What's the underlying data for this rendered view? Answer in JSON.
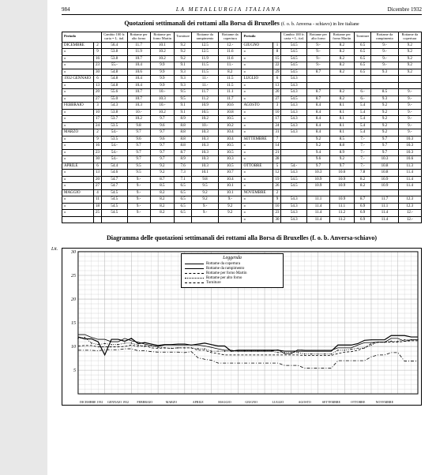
{
  "header": {
    "page_number": "984",
    "journal_title": "LA METALLURGIA ITALIANA",
    "date": "Dicembre 1932"
  },
  "table": {
    "title": "Quotazioni settimanali dei rottami alla Borsa di Bruxelles",
    "subtitle": "(f. o. b. Anversa - schiavo) in lire italiane",
    "columns": [
      "Periodo",
      "Cambio 100 fr. carta = L. ital.",
      "Rottame per alto forno",
      "Rottame per forno Martin",
      "Torniture",
      "Rottame da rampimento",
      "Rottame da copertura"
    ],
    "left_rows": [
      {
        "m": "DICEMBRE",
        "d": "2",
        "v": [
          "56.4",
          "11.7",
          "10.1",
          "9.2",
          "12.5",
          "12.-"
        ]
      },
      {
        "m": "»",
        "d": "9",
        "v": [
          "53.8",
          "11.9",
          "10.2",
          "9.2",
          "12.5",
          "11.6"
        ]
      },
      {
        "m": "»",
        "d": "16",
        "v": [
          "53.8",
          "10.7",
          "10.2",
          "9.2",
          "11.9",
          "11.6"
        ]
      },
      {
        "m": "»",
        "d": "23",
        "v": [
          "55.-",
          "10.4",
          "9.9",
          "9.1",
          "11.5",
          "11.-"
        ]
      },
      {
        "m": "»",
        "d": "30",
        "v": [
          "54.8",
          "10.6",
          "9.9",
          "9.3",
          "11.5",
          "8.2"
        ]
      },
      {
        "m": "1932 GENNAIO",
        "d": "6",
        "v": [
          "54.8",
          "10.4",
          "9.9",
          "9.3",
          "11.-",
          "11.5"
        ]
      },
      {
        "m": "»",
        "d": "13",
        "v": [
          "54.8",
          "10.4",
          "9.9",
          "9.3",
          "11.-",
          "11.5"
        ]
      },
      {
        "m": "»",
        "d": "20",
        "v": [
          "55.6",
          "10.7",
          "10.-",
          "9.5",
          "11.7",
          "11.1"
        ]
      },
      {
        "m": "»",
        "d": "27",
        "v": [
          "55.0",
          "10.7",
          "10.3",
          "9.5",
          "11.2",
          "11.7"
        ]
      },
      {
        "m": "FEBBRAIO",
        "d": "3",
        "v": [
          "54.3",
          "10.3",
          "10.-",
          "9.1",
          "10.9",
          "10.6"
        ]
      },
      {
        "m": "»",
        "d": "10",
        "v": [
          "53.8",
          "10.-",
          "10.2",
          "9.1",
          "10.5",
          "10.8"
        ]
      },
      {
        "m": "»",
        "d": "17",
        "v": [
          "53.7",
          "10.2",
          "9.7",
          "8.9",
          "10.2",
          "10.5"
        ]
      },
      {
        "m": "»",
        "d": "24",
        "v": [
          "53.5",
          "9.8",
          "9.6",
          "8.8",
          "10.-",
          "10.2"
        ]
      },
      {
        "m": "MARZO",
        "d": "2",
        "v": [
          "54.-",
          "9.7",
          "9.7",
          "8.8",
          "10.3",
          "10.4"
        ]
      },
      {
        "m": "»",
        "d": "9",
        "v": [
          "53.5",
          "9.6",
          "9.6",
          "8.8",
          "10.3",
          "10.4"
        ]
      },
      {
        "m": "»",
        "d": "16",
        "v": [
          "54.-",
          "9.7",
          "9.7",
          "8.8",
          "10.3",
          "10.5"
        ]
      },
      {
        "m": "»",
        "d": "23",
        "v": [
          "54.-",
          "9.7",
          "9.7",
          "8.7",
          "10.3",
          "10.5"
        ]
      },
      {
        "m": "»",
        "d": "30",
        "v": [
          "54.-",
          "9.7",
          "9.7",
          "8.9",
          "10.3",
          "10.3"
        ]
      },
      {
        "m": "APRILE",
        "d": "6",
        "v": [
          "54.4",
          "9.5",
          "9.2",
          "7.6",
          "10.3",
          "10.5"
        ]
      },
      {
        "m": "»",
        "d": "13",
        "v": [
          "54.6",
          "9.5",
          "9.2",
          "7.3",
          "10.1",
          "10.7"
        ]
      },
      {
        "m": "»",
        "d": "20",
        "v": [
          "54.7",
          "9.-",
          "8.7",
          "7.1",
          "9.8",
          "10.4"
        ]
      },
      {
        "m": "»",
        "d": "27",
        "v": [
          "54.7",
          "9.-",
          "8.5",
          "6.5",
          "9.5",
          "10.1"
        ]
      },
      {
        "m": "MAGGIO",
        "d": "4",
        "v": [
          "54.5",
          "9.-",
          "8.2",
          "6.5",
          "9.2",
          "10.1"
        ]
      },
      {
        "m": "»",
        "d": "11",
        "v": [
          "54.5",
          "9.-",
          "8.2",
          "6.5",
          "9.2",
          "9.-"
        ]
      },
      {
        "m": "»",
        "d": "18",
        "v": [
          "54.5",
          "9.-",
          "8.2",
          "6.5",
          "9.-",
          "9.2"
        ]
      },
      {
        "m": "»",
        "d": "25",
        "v": [
          "54.5",
          "9.-",
          "8.2",
          "6.5",
          "9.-",
          "9.2"
        ]
      }
    ],
    "right_rows": [
      {
        "m": "GIUGNO",
        "d": "1",
        "v": [
          "54.5",
          "9.-",
          "8.2",
          "6.5",
          "9.-",
          "9.2"
        ]
      },
      {
        "m": "»",
        "d": "8",
        "v": [
          "54.5",
          "9.-",
          "8.2",
          "6.5",
          "9.-",
          "9.2"
        ]
      },
      {
        "m": "»",
        "d": "15",
        "v": [
          "54.5",
          "9.-",
          "8.2",
          "6.5",
          "9.-",
          "9.2"
        ]
      },
      {
        "m": "»",
        "d": "22",
        "v": [
          "54.5",
          "9.-",
          "8.2",
          "6.5",
          "9.-",
          "9.2"
        ]
      },
      {
        "m": "»",
        "d": "29",
        "v": [
          "54.5",
          "8.7",
          "8.2",
          "6.5",
          "9.3",
          "9.2"
        ]
      },
      {
        "m": "LUGLIO",
        "d": "6",
        "v": [
          "54.3",
          "",
          "",
          "",
          "",
          ""
        ]
      },
      {
        "m": "»",
        "d": "13",
        "v": [
          "54.3",
          "",
          "",
          "",
          "",
          ""
        ]
      },
      {
        "m": "»",
        "d": "20",
        "v": [
          "54.3",
          "8.7",
          "8.2",
          "6.-",
          "8.5",
          "9.-"
        ]
      },
      {
        "m": "»",
        "d": "27",
        "v": [
          "54.5",
          "8.7",
          "8.2",
          "6.-",
          "9.3",
          "9.-"
        ]
      },
      {
        "m": "AGOSTO",
        "d": "3",
        "v": [
          "54.3",
          "8.4",
          "8.1",
          "5.4",
          "9.2",
          "9.-"
        ]
      },
      {
        "m": "»",
        "d": "10",
        "v": [
          "54.3",
          "8.4",
          "8.1",
          "5.4",
          "9.2",
          "9.-"
        ]
      },
      {
        "m": "»",
        "d": "17",
        "v": [
          "54.3",
          "8.4",
          "8.1",
          "5.4",
          "9.2",
          "9.-"
        ]
      },
      {
        "m": "»",
        "d": "24",
        "v": [
          "54.3",
          "8.4",
          "8.1",
          "5.4",
          "9.2",
          "9.-"
        ]
      },
      {
        "m": "»",
        "d": "31",
        "v": [
          "54.3",
          "8.4",
          "8.1",
          "5.4",
          "9.2",
          "9.-"
        ]
      },
      {
        "m": "SETTEMBRE",
        "d": "7",
        "v": [
          "",
          "9.2",
          "8.5",
          "7.-",
          "9.7",
          "10.3"
        ]
      },
      {
        "m": "»",
        "d": "14",
        "v": [
          "",
          "9.2",
          "8.8",
          "7.-",
          "9.7",
          "10.3"
        ]
      },
      {
        "m": "»",
        "d": "21",
        "v": [
          "",
          "9.4",
          "8.9",
          "7.-",
          "9.7",
          "10.3"
        ]
      },
      {
        "m": "»",
        "d": "28",
        "v": [
          "",
          "9.6",
          "9.2",
          "7.-",
          "10.3",
          "10.6"
        ]
      },
      {
        "m": "OTTOBRE",
        "d": "5",
        "v": [
          "54.-",
          "9.7",
          "9.7",
          "7.-",
          "10.8",
          "11.3"
        ]
      },
      {
        "m": "»",
        "d": "12",
        "v": [
          "54.3",
          "10.3",
          "10.6",
          "7.8",
          "10.8",
          "11.4"
        ]
      },
      {
        "m": "»",
        "d": "19",
        "v": [
          "54.5",
          "10.9",
          "10.9",
          "8.2",
          "10.9",
          "11.4"
        ]
      },
      {
        "m": "»",
        "d": "26",
        "v": [
          "54.5",
          "10.9",
          "10.9",
          "8.2",
          "10.9",
          "11.4"
        ]
      },
      {
        "m": "NOVEMBRE",
        "d": "2",
        "v": [
          "",
          "",
          "",
          "",
          "",
          ""
        ]
      },
      {
        "m": "»",
        "d": "9",
        "v": [
          "54.3",
          "11.1",
          "10.9",
          "8.7",
          "11.7",
          "12.3"
        ]
      },
      {
        "m": "»",
        "d": "16",
        "v": [
          "54.3",
          "11.4",
          "11.1",
          "6.9",
          "11.1",
          "12.3"
        ]
      },
      {
        "m": "»",
        "d": "23",
        "v": [
          "54.3",
          "11.4",
          "11.2",
          "6.9",
          "11.4",
          "12.-"
        ]
      },
      {
        "m": "»",
        "d": "30",
        "v": [
          "54.3",
          "11.4",
          "11.2",
          "6.9",
          "11.4",
          "12.-"
        ]
      }
    ]
  },
  "chart": {
    "title": "Diagramma delle quotazioni settimanali dei rottami alla Borsa di Bruxelles",
    "subtitle": "(f. o. b. Anversa-schiavo)",
    "y_label": "Lit.",
    "y_max": 30,
    "y_min": 0,
    "y_tick_step": 5,
    "y_ticks": [
      30,
      25,
      20,
      15,
      10,
      5
    ],
    "x_months": [
      "DICEMBRE 1931",
      "GENNAIO 1932",
      "FEBBRAIO",
      "MARZO",
      "APRILE",
      "MAGGIO",
      "GIUGNO",
      "LUGLIO",
      "AGOSTO",
      "SETTEMBRE",
      "OTTOBRE",
      "NOVEMBRE"
    ],
    "grid_color": "#b0b0b0",
    "background_color": "#ffffff",
    "legend": {
      "title": "Leggenda",
      "items": [
        {
          "label": "Rottame da copertura",
          "style": "solid",
          "width": 1.2
        },
        {
          "label": "Rottame da rampimento",
          "style": "solid",
          "width": 0.8
        },
        {
          "label": "Rottame per forno Martin",
          "style": "dashed",
          "width": 0.8
        },
        {
          "label": "Rottame per alto forno",
          "style": "dotted",
          "width": 0.8
        },
        {
          "label": "Torniture",
          "style": "dash-dot",
          "width": 0.8
        }
      ]
    },
    "series": [
      {
        "name": "copertura",
        "style": "solid",
        "width": 1.2,
        "points": [
          12.0,
          11.6,
          11.6,
          11.0,
          8.2,
          11.5,
          11.5,
          11.1,
          11.7,
          10.6,
          10.8,
          10.5,
          10.2,
          10.4,
          10.4,
          10.5,
          10.5,
          10.3,
          10.5,
          10.7,
          10.4,
          10.1,
          10.1,
          9.0,
          9.2,
          9.2,
          9.2,
          9.2,
          9.2,
          9.2,
          9.2,
          9.0,
          9.0,
          9.0,
          9.0,
          9.0,
          9.0,
          9.0,
          9.0,
          10.3,
          10.3,
          10.3,
          10.6,
          11.3,
          11.4,
          11.4,
          11.4,
          12.3,
          12.3,
          12.3,
          12.0,
          12.0
        ]
      },
      {
        "name": "rampimento",
        "style": "solid",
        "width": 0.8,
        "points": [
          12.5,
          12.5,
          11.9,
          11.5,
          11.5,
          11.0,
          11.0,
          11.7,
          11.2,
          10.9,
          10.5,
          10.2,
          10.0,
          10.3,
          10.3,
          10.3,
          10.3,
          10.3,
          10.3,
          10.1,
          9.8,
          9.5,
          9.2,
          9.2,
          9.0,
          9.0,
          9.0,
          9.0,
          9.0,
          9.0,
          9.3,
          8.5,
          8.5,
          9.3,
          9.2,
          9.2,
          9.2,
          9.2,
          9.2,
          9.7,
          9.7,
          9.7,
          10.3,
          10.8,
          10.8,
          10.9,
          10.9,
          11.7,
          11.7,
          11.1,
          11.4,
          11.4
        ]
      },
      {
        "name": "martin",
        "style": "dashed",
        "width": 0.8,
        "points": [
          10.1,
          10.2,
          10.2,
          9.9,
          9.9,
          9.9,
          9.9,
          10.0,
          10.3,
          10.0,
          10.2,
          9.7,
          9.6,
          9.7,
          9.6,
          9.7,
          9.7,
          9.7,
          9.2,
          9.2,
          8.7,
          8.5,
          8.2,
          8.2,
          8.2,
          8.2,
          8.2,
          8.2,
          8.2,
          8.2,
          8.2,
          8.2,
          8.2,
          8.2,
          8.1,
          8.1,
          8.1,
          8.1,
          8.1,
          8.5,
          8.8,
          8.9,
          9.2,
          9.7,
          10.6,
          10.9,
          10.9,
          10.9,
          10.9,
          11.1,
          11.2,
          11.2
        ]
      },
      {
        "name": "altoforno",
        "style": "dotted",
        "width": 0.8,
        "points": [
          11.7,
          11.9,
          10.7,
          10.4,
          10.6,
          10.4,
          10.4,
          10.7,
          10.7,
          10.3,
          10.0,
          10.2,
          9.8,
          9.7,
          9.6,
          9.7,
          9.7,
          9.7,
          9.5,
          9.5,
          9.0,
          9.0,
          9.0,
          9.0,
          9.0,
          9.0,
          9.0,
          9.0,
          9.0,
          9.0,
          8.7,
          8.7,
          8.7,
          8.7,
          8.4,
          8.4,
          8.4,
          8.4,
          8.4,
          9.2,
          9.2,
          9.4,
          9.6,
          9.7,
          10.3,
          10.9,
          10.9,
          11.1,
          11.1,
          11.4,
          11.4,
          11.4
        ]
      },
      {
        "name": "torniture",
        "style": "dash-dot",
        "width": 0.8,
        "points": [
          9.2,
          9.2,
          9.2,
          9.1,
          9.3,
          9.3,
          9.3,
          9.5,
          9.5,
          9.1,
          9.1,
          8.9,
          8.8,
          8.8,
          8.8,
          8.8,
          8.7,
          8.9,
          7.6,
          7.3,
          7.1,
          6.5,
          6.5,
          6.5,
          6.5,
          6.5,
          6.5,
          6.5,
          6.5,
          6.5,
          6.5,
          6.0,
          6.0,
          6.0,
          5.4,
          5.4,
          5.4,
          5.4,
          5.4,
          7.0,
          7.0,
          7.0,
          7.0,
          7.0,
          7.8,
          8.2,
          8.2,
          8.7,
          8.7,
          6.9,
          6.9,
          6.9
        ]
      }
    ]
  }
}
